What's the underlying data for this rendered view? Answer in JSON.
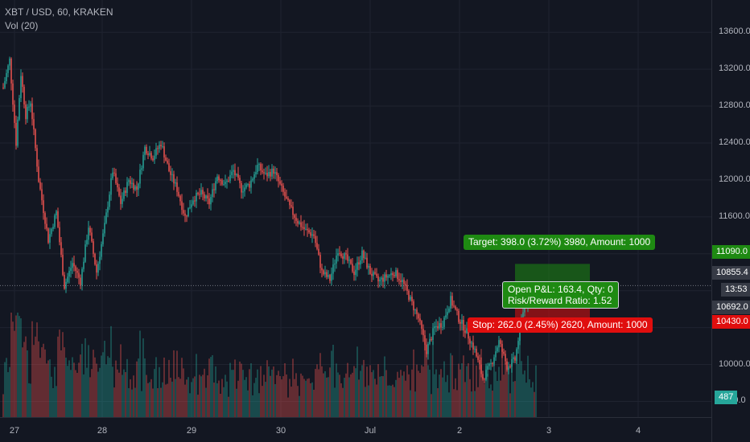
{
  "legend": {
    "symbol_line": "XBT / USD, 60, KRAKEN",
    "indicator": "Vol (20)"
  },
  "colors": {
    "background": "#131722",
    "up": "#26a69a",
    "down": "#ef5350",
    "target_zone": "#1e8a12",
    "stop_zone": "#e00e0e",
    "grid": "#1f2330"
  },
  "chart_data": {
    "type": "candlestick",
    "symbol": "XBT / USD",
    "interval": "60",
    "exchange": "KRAKEN",
    "y_ticks": [
      "13600.0",
      "13200.0",
      "12800.0",
      "12400.0",
      "12000.0",
      "11600.0",
      "11200.0",
      "10000.0",
      "9600.0"
    ],
    "x_ticks": [
      "27",
      "28",
      "29",
      "30",
      "Jul",
      "2",
      "3",
      "4"
    ],
    "anchors": [
      [
        0,
        13000
      ],
      [
        4,
        13300
      ],
      [
        8,
        12400
      ],
      [
        11,
        13150
      ],
      [
        14,
        12700
      ],
      [
        17,
        12850
      ],
      [
        22,
        12000
      ],
      [
        28,
        11350
      ],
      [
        33,
        11650
      ],
      [
        38,
        10850
      ],
      [
        43,
        11100
      ],
      [
        48,
        10900
      ],
      [
        53,
        11500
      ],
      [
        58,
        11000
      ],
      [
        63,
        11500
      ],
      [
        68,
        12100
      ],
      [
        73,
        11750
      ],
      [
        78,
        12000
      ],
      [
        83,
        11900
      ],
      [
        88,
        12350
      ],
      [
        93,
        12250
      ],
      [
        98,
        12400
      ],
      [
        103,
        12100
      ],
      [
        108,
        11900
      ],
      [
        113,
        11600
      ],
      [
        118,
        11800
      ],
      [
        123,
        11850
      ],
      [
        128,
        11750
      ],
      [
        133,
        12050
      ],
      [
        138,
        11950
      ],
      [
        143,
        12100
      ],
      [
        148,
        11900
      ],
      [
        153,
        11950
      ],
      [
        158,
        12150
      ],
      [
        163,
        12050
      ],
      [
        168,
        12100
      ],
      [
        173,
        11900
      ],
      [
        178,
        11700
      ],
      [
        183,
        11550
      ],
      [
        188,
        11450
      ],
      [
        193,
        11400
      ],
      [
        198,
        11000
      ],
      [
        203,
        10920
      ],
      [
        208,
        11250
      ],
      [
        213,
        11150
      ],
      [
        218,
        11000
      ],
      [
        223,
        11200
      ],
      [
        228,
        11000
      ],
      [
        233,
        10900
      ],
      [
        238,
        10950
      ],
      [
        243,
        11000
      ],
      [
        248,
        10900
      ],
      [
        253,
        10700
      ],
      [
        258,
        10500
      ],
      [
        263,
        10150
      ],
      [
        268,
        10400
      ],
      [
        273,
        10450
      ],
      [
        278,
        10700
      ],
      [
        283,
        10500
      ],
      [
        288,
        10350
      ],
      [
        293,
        10150
      ],
      [
        298,
        9850
      ],
      [
        303,
        10000
      ],
      [
        308,
        10250
      ],
      [
        313,
        9980
      ],
      [
        318,
        10050
      ],
      [
        323,
        10600
      ],
      [
        328,
        10800
      ],
      [
        331,
        10855.4
      ]
    ],
    "last_price": 10855.4,
    "price_range": [
      9430,
      13950
    ],
    "long_position": {
      "entry": 10692.0,
      "target": 11090.0,
      "stop": 10430.0,
      "target_label": "Target: 398.0 (3.72%) 3980, Amount: 1000",
      "stop_label": "Stop: 262.0 (2.45%) 2620, Amount: 1000",
      "pnl_label": "Open P&L: 163.4, Qty: 0",
      "ratio_label": "Risk/Reward Ratio: 1.52"
    },
    "volume_last": 487
  },
  "price_scale": {
    "target_tag": "11090.0",
    "last_tag": "10855.4",
    "countdown_tag": "13:53",
    "entry_tag": "10692.0",
    "stop_tag": "10430.0",
    "volume_tag": "487"
  }
}
